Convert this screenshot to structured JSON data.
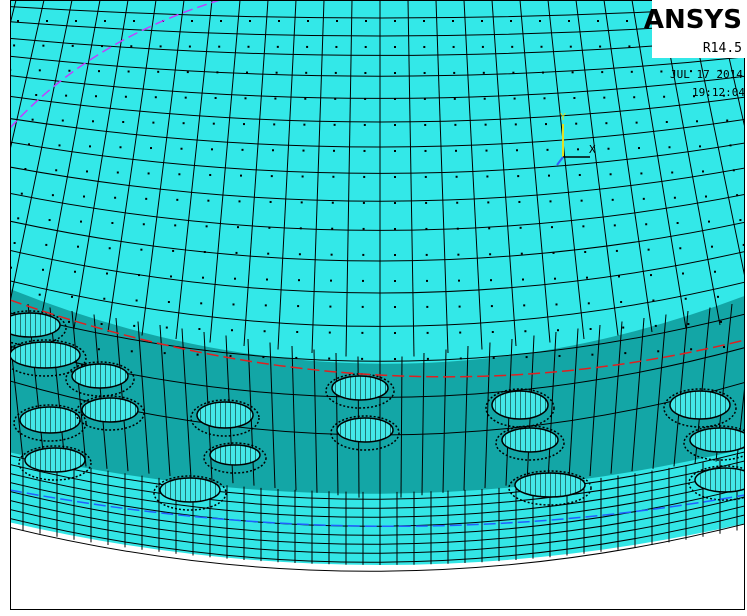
{
  "logo": {
    "title": "ANSYS",
    "version": "R14.5"
  },
  "timestamp": {
    "date": "JUL 17 2014",
    "time": "19:12:04"
  },
  "axis_triad": {
    "y": "Y",
    "x": "X"
  }
}
